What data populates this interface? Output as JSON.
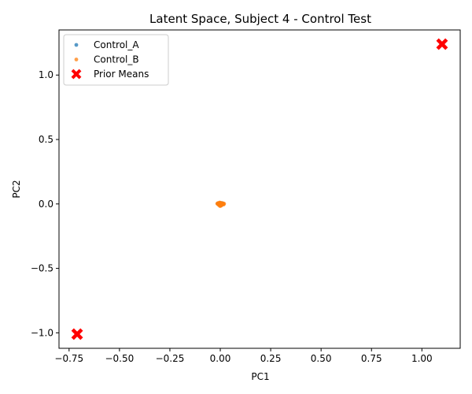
{
  "chart_data": {
    "type": "scatter",
    "title": "Latent Space, Subject 4 - Control Test",
    "xlabel": "PC1",
    "ylabel": "PC2",
    "xlim": [
      -0.8,
      1.19
    ],
    "ylim": [
      -1.12,
      1.35
    ],
    "xticks": [
      -0.75,
      -0.5,
      -0.25,
      0.0,
      0.25,
      0.5,
      0.75,
      1.0
    ],
    "xtick_labels": [
      "−0.75",
      "−0.50",
      "−0.25",
      "0.00",
      "0.25",
      "0.50",
      "0.75",
      "1.00"
    ],
    "yticks": [
      -1.0,
      -0.5,
      0.0,
      0.5,
      1.0
    ],
    "ytick_labels": [
      "−1.0",
      "−0.5",
      "0.0",
      "0.5",
      "1.0"
    ],
    "grid": false,
    "legend_position": "top-left",
    "series": [
      {
        "name": "Control_A",
        "color": "#1f77b4",
        "marker": "dot",
        "points": [
          [
            0.0,
            0.002
          ],
          [
            0.004,
            -0.003
          ],
          [
            -0.006,
            0.004
          ],
          [
            0.008,
            0.001
          ],
          [
            -0.002,
            -0.006
          ],
          [
            0.011,
            0.003
          ],
          [
            -0.01,
            -0.001
          ],
          [
            0.003,
            0.007
          ],
          [
            0.006,
            -0.008
          ],
          [
            -0.004,
            0.0
          ],
          [
            0.013,
            -0.002
          ],
          [
            -0.013,
            0.002
          ],
          [
            0.001,
            -0.01
          ],
          [
            0.009,
            0.006
          ],
          [
            -0.007,
            -0.005
          ]
        ]
      },
      {
        "name": "Control_B",
        "color": "#ff7f0e",
        "marker": "dot",
        "points": [
          [
            -0.015,
            0.002
          ],
          [
            -0.011,
            -0.001
          ],
          [
            -0.008,
            0.005
          ],
          [
            -0.005,
            -0.004
          ],
          [
            -0.002,
            0.003
          ],
          [
            0.002,
            -0.002
          ],
          [
            0.005,
            0.004
          ],
          [
            0.008,
            -0.003
          ],
          [
            0.012,
            0.001
          ],
          [
            0.015,
            -0.001
          ],
          [
            0.019,
            0.002
          ],
          [
            -0.012,
            0.006
          ],
          [
            -0.004,
            -0.012
          ],
          [
            -0.001,
            -0.017
          ],
          [
            0.003,
            -0.009
          ],
          [
            0.007,
            0.007
          ],
          [
            0.01,
            -0.006
          ],
          [
            -0.006,
            0.008
          ],
          [
            0.0,
            0.009
          ],
          [
            0.014,
            0.005
          ],
          [
            -0.009,
            -0.006
          ],
          [
            0.004,
            -0.014
          ],
          [
            0.017,
            -0.004
          ],
          [
            -0.003,
            0.011
          ],
          [
            0.001,
            0.0
          ]
        ]
      },
      {
        "name": "Prior Means",
        "color": "#ff0000",
        "marker": "x-filled",
        "points": [
          [
            -0.71,
            -1.01
          ],
          [
            1.1,
            1.24
          ]
        ]
      }
    ]
  }
}
